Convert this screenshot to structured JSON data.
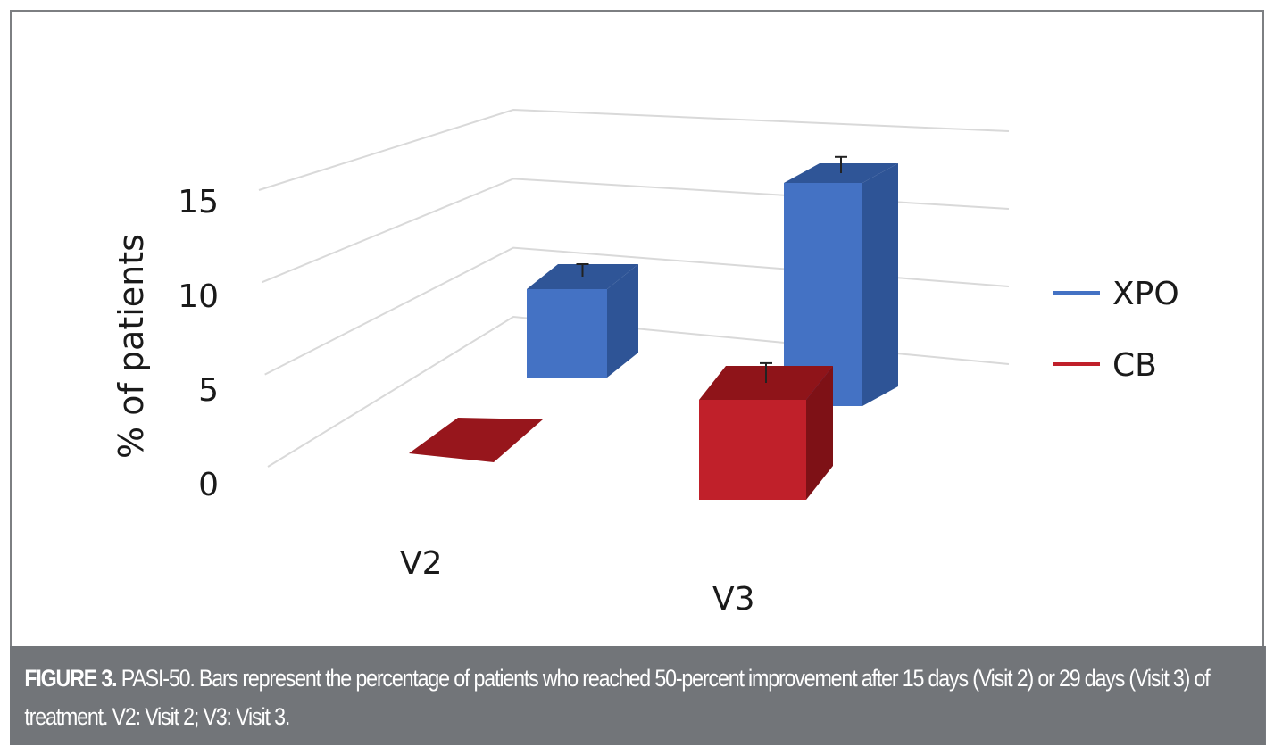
{
  "chart_data": {
    "type": "bar",
    "subtype": "3d-clustered-column-with-error-bars",
    "title": "",
    "xlabel": "",
    "ylabel": "% of patients",
    "ylim": [
      0,
      15
    ],
    "yticks": [
      "0",
      "5",
      "10",
      "15"
    ],
    "categories": [
      "V2",
      "V3"
    ],
    "grid": true,
    "legend_position": "right",
    "series": [
      {
        "name": "XPO",
        "color": "#4472c4",
        "values": [
          6.7,
          13.3
        ],
        "error": [
          1.0,
          1.3
        ]
      },
      {
        "name": "CB",
        "color": "#c0202a",
        "values": [
          0,
          5.0
        ],
        "error": [
          0,
          1.3
        ]
      }
    ]
  },
  "caption": {
    "label": "FIGURE 3.",
    "text": " PASI-50. Bars represent the percentage of patients who reached 50-percent improvement after 15 days (Visit 2) or 29 days (Visit 3) of treatment. V2: Visit 2; V3: Visit 3."
  }
}
